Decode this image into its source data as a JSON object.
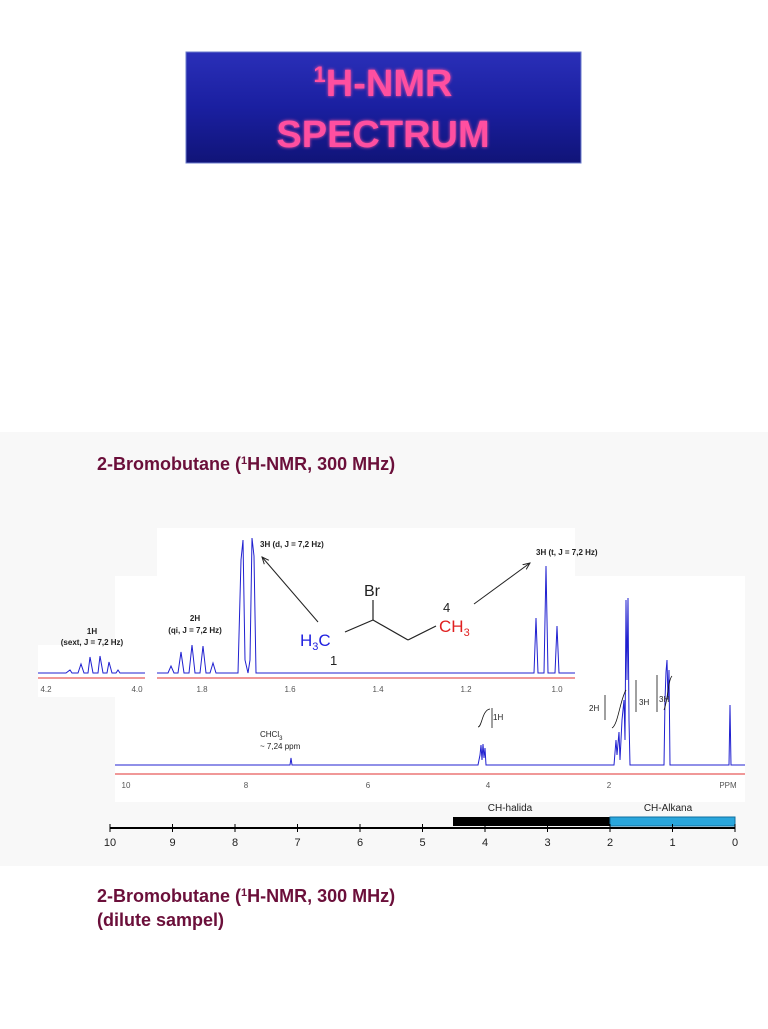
{
  "title": {
    "sup": "1",
    "line1": "H-NMR",
    "line2": "SPECTRUM"
  },
  "heading1": {
    "before": "2-Bromobutane (",
    "sup": "1",
    "after": "H-NMR, 300 MHz)"
  },
  "spectrum": {
    "inset_labels": {
      "sext_count": "1H",
      "sext_desc": "(sext, J = 7,2 Hz)",
      "qi_count": "2H",
      "qi_desc": "(qi, J = 7,2 Hz)",
      "d_label": "3H (d, J = 7,2 Hz)",
      "t_label": "3H (t, J = 7,2 Hz)"
    },
    "molecule": {
      "br": "Br",
      "h3c_h": "H",
      "h3c_sub": "3",
      "h3c_c": "C",
      "num1": "1",
      "num4": "4",
      "ch3_ch": "CH",
      "ch3_sub": "3"
    },
    "inset_ticks": [
      "4.2",
      "4.0",
      "1.8",
      "1.6",
      "1.4",
      "1.2",
      "1.0"
    ],
    "solvent": {
      "name": "CHCl",
      "sub": "3",
      "shift": "~ 7,24 ppm"
    },
    "integrals": [
      "1H",
      "2H",
      "3H",
      "3H"
    ],
    "main_ticks": [
      "10",
      "8",
      "6",
      "4",
      "2",
      "PPM"
    ]
  },
  "ranges": [
    "CH-halida",
    "CH-Alkana"
  ],
  "scale_ticks": [
    "10",
    "9",
    "8",
    "7",
    "6",
    "5",
    "4",
    "3",
    "2",
    "1",
    "0"
  ],
  "heading2": {
    "before": "2-Bromobutane (",
    "sup": "1",
    "after": "H-NMR, 300 MHz)",
    "line2": "(dilute sampel)"
  }
}
